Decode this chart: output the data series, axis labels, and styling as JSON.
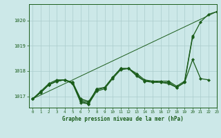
{
  "background_color": "#cce8e8",
  "grid_color": "#aacccc",
  "line_color": "#1a5c1a",
  "title": "Graphe pression niveau de la mer (hPa)",
  "xlim": [
    -0.5,
    23
  ],
  "ylim": [
    1016.55,
    1020.65
  ],
  "yticks": [
    1017,
    1018,
    1019,
    1020
  ],
  "xticks": [
    0,
    1,
    2,
    3,
    4,
    5,
    6,
    7,
    8,
    9,
    10,
    11,
    12,
    13,
    14,
    15,
    16,
    17,
    18,
    19,
    20,
    21,
    22,
    23
  ],
  "series": [
    {
      "x": [
        0,
        1,
        2,
        3,
        4,
        5,
        6,
        7,
        8,
        9,
        10,
        11,
        12,
        13,
        14,
        15,
        16,
        17,
        18,
        19,
        20,
        21,
        22,
        23
      ],
      "y": [
        1016.9,
        1017.15,
        1017.45,
        1017.6,
        1017.65,
        1017.55,
        1016.85,
        1016.75,
        1017.3,
        1017.35,
        1017.75,
        1018.1,
        1018.1,
        1017.85,
        1017.6,
        1017.55,
        1017.55,
        1017.55,
        1017.35,
        1017.55,
        1019.35,
        1019.95,
        1020.25,
        1020.35
      ],
      "marker": "D",
      "markersize": 2.2,
      "linewidth": 0.9
    },
    {
      "x": [
        0,
        1,
        2,
        3,
        4,
        5,
        6,
        7,
        8,
        9,
        10,
        11,
        12,
        13,
        14,
        15,
        16,
        17,
        18,
        19,
        20,
        21,
        22,
        23
      ],
      "y": [
        1016.9,
        1017.15,
        1017.45,
        1017.6,
        1017.65,
        1017.5,
        1016.8,
        1016.7,
        1017.2,
        1017.3,
        1017.7,
        1018.05,
        1018.1,
        1017.8,
        1017.6,
        1017.6,
        1017.55,
        1017.5,
        1017.35,
        1017.55,
        1018.45,
        1017.7,
        1017.65,
        null
      ],
      "marker": "D",
      "markersize": 2.2,
      "linewidth": 0.9
    },
    {
      "x": [
        0,
        1,
        2,
        3,
        4,
        5,
        6,
        7,
        8,
        9,
        10,
        11,
        12,
        13,
        14,
        15,
        16,
        17,
        18,
        19,
        20,
        21,
        22,
        23
      ],
      "y": [
        1016.9,
        1017.2,
        1017.5,
        1017.65,
        1017.65,
        1017.55,
        1016.9,
        1016.8,
        1017.25,
        1017.35,
        1017.75,
        1018.1,
        1018.1,
        1017.9,
        1017.65,
        1017.6,
        1017.6,
        1017.6,
        1017.4,
        1017.6,
        1019.4,
        null,
        null,
        null
      ],
      "marker": "D",
      "markersize": 2.2,
      "linewidth": 0.9
    },
    {
      "x": [
        0,
        1,
        2,
        3,
        4,
        5,
        6,
        7,
        8
      ],
      "y": [
        1016.9,
        1017.15,
        1017.45,
        1017.6,
        1017.65,
        1017.5,
        1016.75,
        1016.7,
        1017.3
      ],
      "marker": "D",
      "markersize": 2.2,
      "linewidth": 0.9
    },
    {
      "x": [
        0,
        23
      ],
      "y": [
        1016.9,
        1020.35
      ],
      "marker": null,
      "markersize": 0,
      "linewidth": 0.7
    }
  ]
}
